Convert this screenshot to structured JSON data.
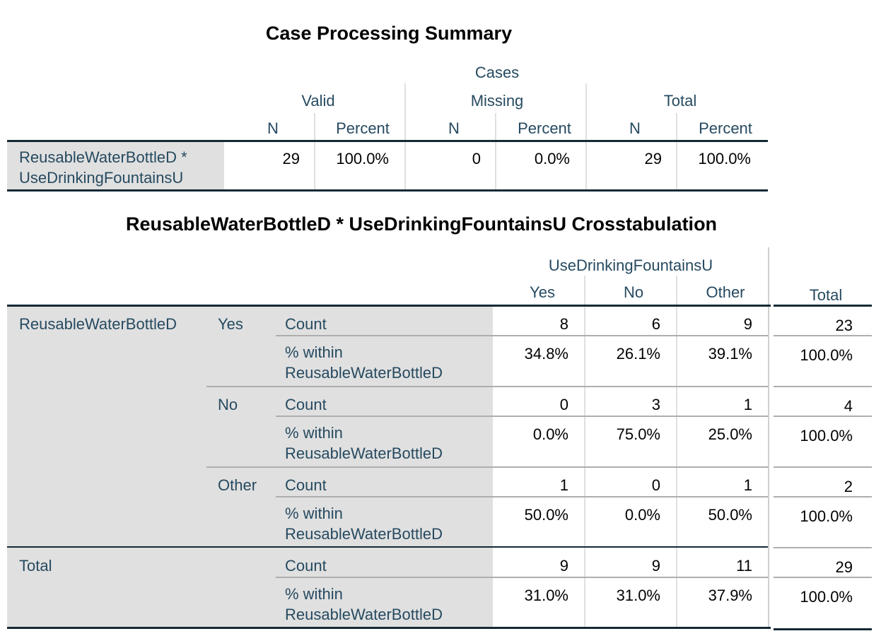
{
  "case_summary": {
    "title": "Case Processing Summary",
    "cases_label": "Cases",
    "groups": [
      "Valid",
      "Missing",
      "Total"
    ],
    "sub_n": "N",
    "sub_percent": "Percent",
    "row_label_1": "ReusableWaterBottleD *",
    "row_label_2": "UseDrinkingFountainsU",
    "values": [
      "29",
      "100.0%",
      "0",
      "0.0%",
      "29",
      "100.0%"
    ]
  },
  "crosstab": {
    "title": "ReusableWaterBottleD * UseDrinkingFountainsU Crosstabulation",
    "col_var": "UseDrinkingFountainsU",
    "col_yes": "Yes",
    "col_no": "No",
    "col_other": "Other",
    "col_total": "Total",
    "row_var": "ReusableWaterBottleD",
    "total_label": "Total",
    "count_label": "Count",
    "pct_label_1": "% within",
    "pct_label_2": "ReusableWaterBottleD",
    "groups": [
      {
        "label": "Yes",
        "count": [
          "8",
          "6",
          "9",
          "23"
        ],
        "pct": [
          "34.8%",
          "26.1%",
          "39.1%",
          "100.0%"
        ]
      },
      {
        "label": "No",
        "count": [
          "0",
          "3",
          "1",
          "4"
        ],
        "pct": [
          "0.0%",
          "75.0%",
          "25.0%",
          "100.0%"
        ]
      },
      {
        "label": "Other",
        "count": [
          "1",
          "0",
          "1",
          "2"
        ],
        "pct": [
          "50.0%",
          "0.0%",
          "50.0%",
          "100.0%"
        ]
      }
    ],
    "total": {
      "count": [
        "9",
        "9",
        "11",
        "29"
      ],
      "pct": [
        "31.0%",
        "31.0%",
        "37.9%",
        "100.0%"
      ]
    }
  }
}
